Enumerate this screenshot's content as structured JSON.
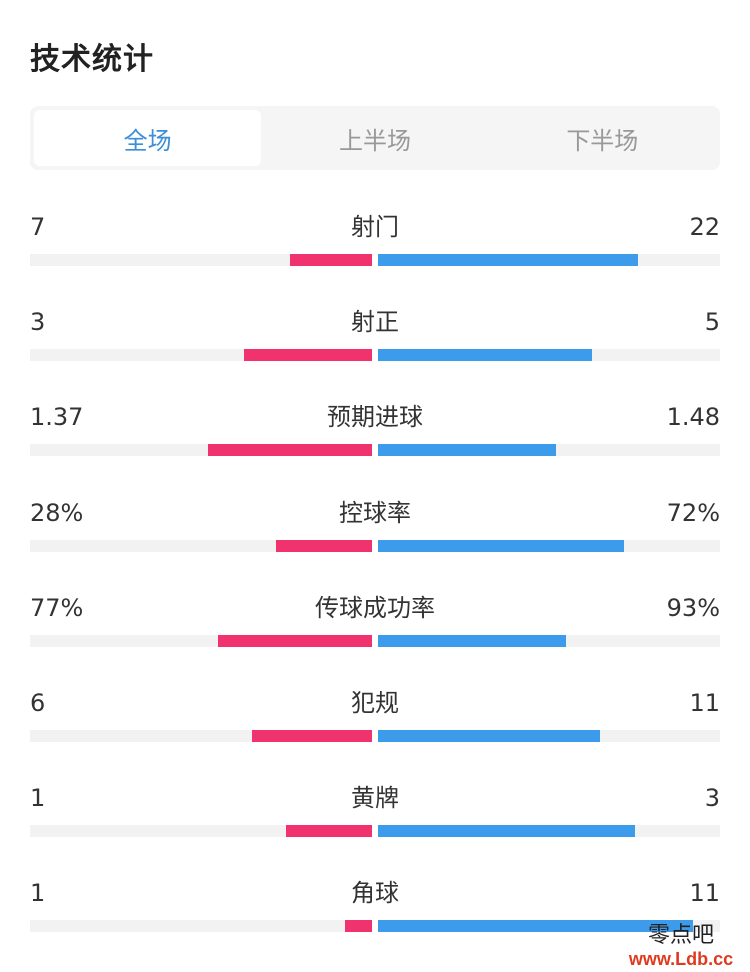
{
  "header": {
    "title": "技术统计"
  },
  "tabs": [
    {
      "label": "全场",
      "active": true
    },
    {
      "label": "上半场",
      "active": false
    },
    {
      "label": "下半场",
      "active": false
    }
  ],
  "colors": {
    "home_bar": "#f0336e",
    "away_bar": "#3d9bec",
    "track": "#f2f2f2",
    "active_tab_text": "#3b8fd8"
  },
  "stats": [
    {
      "label": "射门",
      "home": "7",
      "away": "22",
      "home_fill": 0.24,
      "away_fill": 0.76
    },
    {
      "label": "射正",
      "home": "3",
      "away": "5",
      "home_fill": 0.375,
      "away_fill": 0.625
    },
    {
      "label": "预期进球",
      "home": "1.37",
      "away": "1.48",
      "home_fill": 0.48,
      "away_fill": 0.52
    },
    {
      "label": "控球率",
      "home": "28%",
      "away": "72%",
      "home_fill": 0.28,
      "away_fill": 0.72
    },
    {
      "label": "传球成功率",
      "home": "77%",
      "away": "93%",
      "home_fill": 0.45,
      "away_fill": 0.55
    },
    {
      "label": "犯规",
      "home": "6",
      "away": "11",
      "home_fill": 0.35,
      "away_fill": 0.65
    },
    {
      "label": "黄牌",
      "home": "1",
      "away": "3",
      "home_fill": 0.25,
      "away_fill": 0.75
    },
    {
      "label": "角球",
      "home": "1",
      "away": "11",
      "home_fill": 0.08,
      "away_fill": 0.92
    }
  ],
  "watermark": {
    "name": "零点吧",
    "url": "www.Ldb.cc"
  }
}
